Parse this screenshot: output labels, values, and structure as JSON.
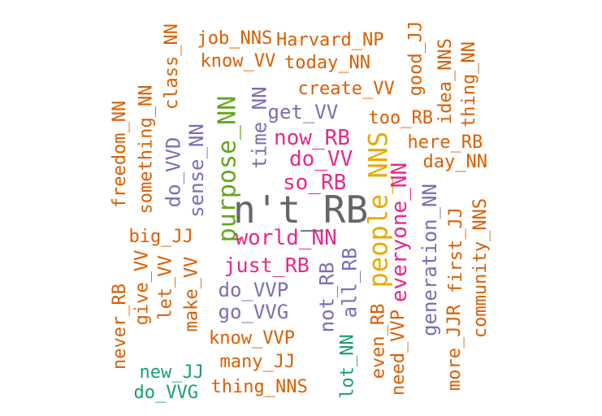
{
  "colors": {
    "orange": "#d95f02",
    "purple": "#7570b3",
    "magenta": "#e7298a",
    "green": "#66a61e",
    "gold": "#e6ab02",
    "gray": "#666666",
    "teal": "#1b9e77"
  },
  "words": [
    {
      "text": "n't_RB",
      "color": "gray"
    },
    {
      "text": "people_NNS",
      "color": "gold"
    },
    {
      "text": "purpose_NN",
      "color": "green"
    },
    {
      "text": "world_NN",
      "color": "magenta"
    },
    {
      "text": "just_RB",
      "color": "magenta"
    },
    {
      "text": "now_RB",
      "color": "magenta"
    },
    {
      "text": "do_VV",
      "color": "magenta"
    },
    {
      "text": "so_RB",
      "color": "magenta"
    },
    {
      "text": "everyone_NN",
      "color": "magenta"
    },
    {
      "text": "get_VV",
      "color": "purple"
    },
    {
      "text": "time_NN",
      "color": "purple"
    },
    {
      "text": "sense_NN",
      "color": "purple"
    },
    {
      "text": "do_VVD",
      "color": "purple"
    },
    {
      "text": "do_VVP",
      "color": "purple"
    },
    {
      "text": "go_VVG",
      "color": "purple"
    },
    {
      "text": "not_RB",
      "color": "purple"
    },
    {
      "text": "all_RB",
      "color": "purple"
    },
    {
      "text": "generation_NN",
      "color": "purple"
    },
    {
      "text": "job_NNS",
      "color": "orange"
    },
    {
      "text": "Harvard_NP",
      "color": "orange"
    },
    {
      "text": "know_VV",
      "color": "orange"
    },
    {
      "text": "today_NN",
      "color": "orange"
    },
    {
      "text": "create_VV",
      "color": "orange"
    },
    {
      "text": "too_RB",
      "color": "orange"
    },
    {
      "text": "good_JJ",
      "color": "orange"
    },
    {
      "text": "idea_NNS",
      "color": "orange"
    },
    {
      "text": "thing_NN",
      "color": "orange"
    },
    {
      "text": "here_RB",
      "color": "orange"
    },
    {
      "text": "day_NN",
      "color": "orange"
    },
    {
      "text": "class_NN",
      "color": "orange"
    },
    {
      "text": "something_NN",
      "color": "orange"
    },
    {
      "text": "freedom_NN",
      "color": "orange"
    },
    {
      "text": "big_JJ",
      "color": "orange"
    },
    {
      "text": "give_VV",
      "color": "orange"
    },
    {
      "text": "let_VV",
      "color": "orange"
    },
    {
      "text": "make_VV",
      "color": "orange"
    },
    {
      "text": "never_RB",
      "color": "orange"
    },
    {
      "text": "know_VVP",
      "color": "orange"
    },
    {
      "text": "many_JJ",
      "color": "orange"
    },
    {
      "text": "thing_NNS",
      "color": "orange"
    },
    {
      "text": "even_RB",
      "color": "orange"
    },
    {
      "text": "need_VVP",
      "color": "orange"
    },
    {
      "text": "first_JJ",
      "color": "orange"
    },
    {
      "text": "more_JJR",
      "color": "orange"
    },
    {
      "text": "community_NNS",
      "color": "orange"
    },
    {
      "text": "new_JJ",
      "color": "teal"
    },
    {
      "text": "do_VVG",
      "color": "teal"
    },
    {
      "text": "lot_NN",
      "color": "teal"
    }
  ]
}
